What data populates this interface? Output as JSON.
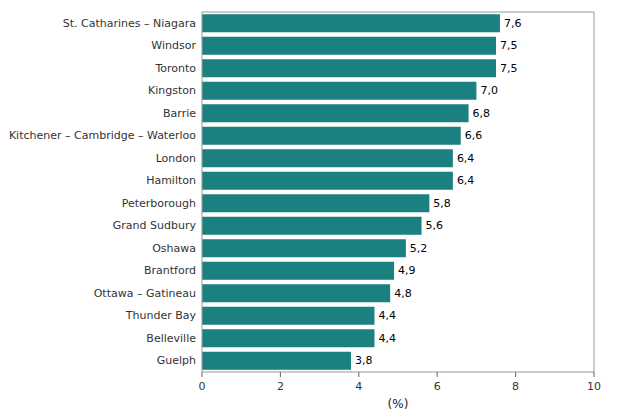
{
  "chart_data": {
    "type": "bar",
    "orientation": "horizontal",
    "categories": [
      "Guelph",
      "Belleville",
      "Thunder Bay",
      "Ottawa – Gatineau",
      "Brantford",
      "Oshawa",
      "Grand Sudbury",
      "Peterborough",
      "Hamilton",
      "London",
      "Kitchener – Cambridge – Waterloo",
      "Barrie",
      "Kingston",
      "Toronto",
      "Windsor",
      "St. Catharines – Niagara"
    ],
    "values": [
      3.8,
      4.4,
      4.4,
      4.8,
      4.9,
      5.2,
      5.6,
      5.8,
      6.4,
      6.4,
      6.6,
      6.8,
      7.0,
      7.5,
      7.5,
      7.6
    ],
    "value_labels": [
      "3,8",
      "4,4",
      "4,4",
      "4,8",
      "4,9",
      "5,2",
      "5,6",
      "5,8",
      "6,4",
      "6,4",
      "6,6",
      "6,8",
      "7,0",
      "7,5",
      "7,5",
      "7,6"
    ],
    "data_labels": true,
    "color": "#1a8080",
    "xlabel": "(%)",
    "xlim": [
      0,
      10
    ],
    "xticks": [
      0,
      2,
      4,
      6,
      8,
      10
    ],
    "grid": false
  }
}
